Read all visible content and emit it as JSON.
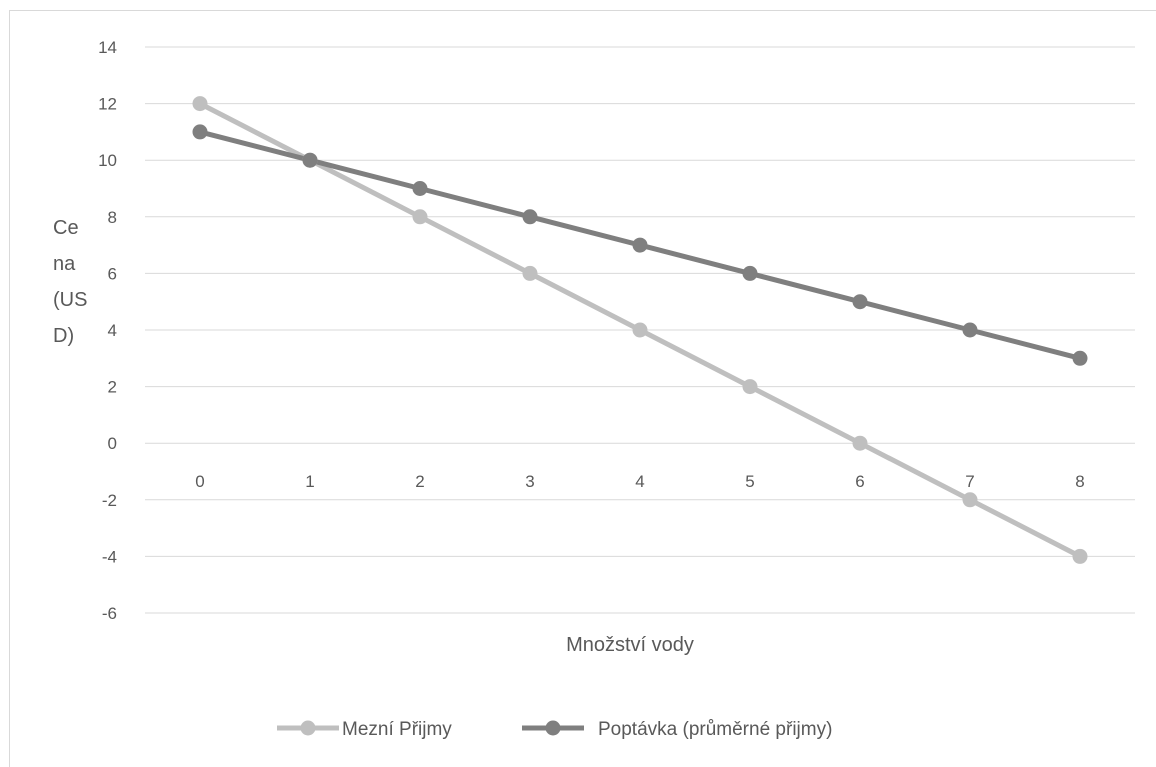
{
  "chart_data": {
    "type": "line",
    "title": "",
    "xlabel": "Množství vody",
    "ylabel_lines": [
      "Ce",
      "na",
      "(US",
      "D)"
    ],
    "x": [
      0,
      1,
      2,
      3,
      4,
      5,
      6,
      7,
      8
    ],
    "x_tick_labels": [
      "0",
      "1",
      "2",
      "3",
      "4",
      "5",
      "6",
      "7",
      "8"
    ],
    "y_ticks": [
      14,
      12,
      10,
      8,
      6,
      4,
      2,
      0,
      -2,
      -4,
      -6
    ],
    "y_tick_labels": [
      "14",
      "12",
      "10",
      "8",
      "6",
      "4",
      "2",
      "0",
      "-2",
      "-4",
      "-6"
    ],
    "ylim": [
      -6,
      14
    ],
    "grid": true,
    "legend_position": "bottom",
    "series": [
      {
        "name": "Mezní Přijmy",
        "values": [
          12,
          10,
          8,
          6,
          4,
          2,
          0,
          -2,
          -4
        ],
        "color": "#bfbfbf"
      },
      {
        "name": "Poptávka (průměrné přijmy)",
        "values": [
          11,
          10,
          9,
          8,
          7,
          6,
          5,
          4,
          3
        ],
        "color": "#7f7f7f"
      }
    ],
    "gridline_color": "#d9d9d9"
  }
}
